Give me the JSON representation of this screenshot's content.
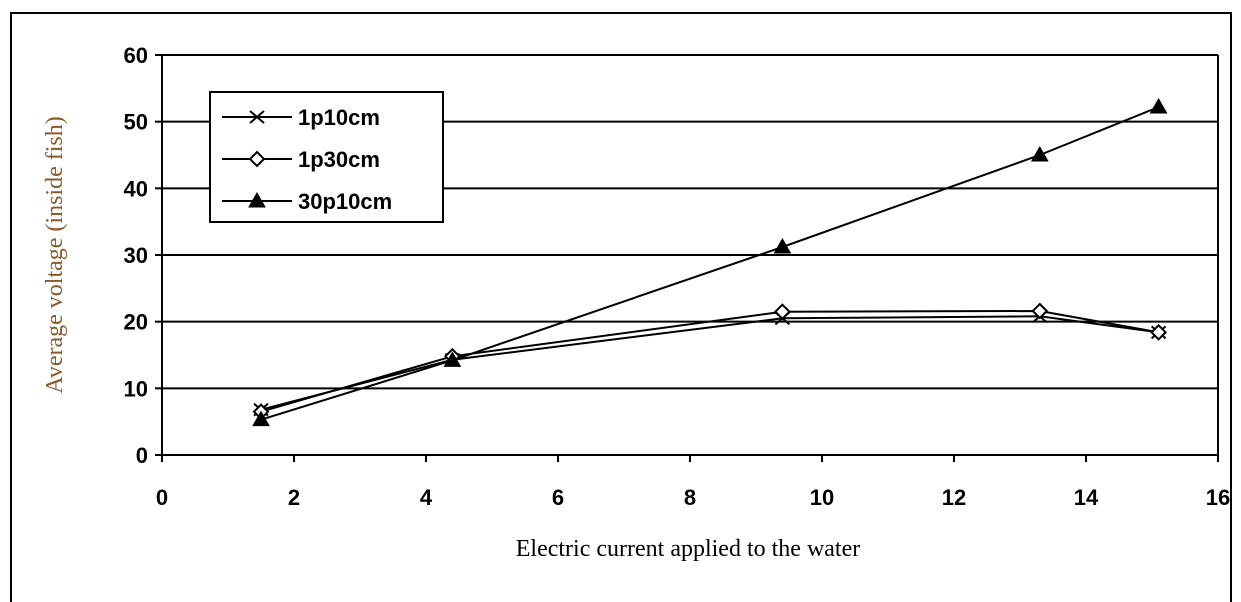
{
  "chart_data": {
    "type": "line",
    "xlabel": "Electric current applied to the water",
    "ylabel": "Average voltage (inside fish)",
    "xlim": [
      0,
      16
    ],
    "ylim": [
      0,
      60
    ],
    "xticks": [
      "0",
      "2",
      "4",
      "6",
      "8",
      "10",
      "12",
      "14",
      "16"
    ],
    "yticks": [
      "0",
      "10",
      "20",
      "30",
      "40",
      "50",
      "60"
    ],
    "grid": "horizontal",
    "legend_position": "top-left",
    "series": [
      {
        "name": "1p10cm",
        "marker": "x",
        "color": "#000000",
        "x": [
          1.5,
          4.4,
          9.4,
          13.3,
          15.1
        ],
        "y": [
          6.8,
          14.3,
          20.5,
          20.8,
          18.4
        ]
      },
      {
        "name": "1p30cm",
        "marker": "diamond",
        "color": "#000000",
        "x": [
          1.5,
          4.4,
          9.4,
          13.3,
          15.1
        ],
        "y": [
          6.5,
          14.8,
          21.5,
          21.6,
          18.4
        ]
      },
      {
        "name": "30p10cm",
        "marker": "triangle",
        "color": "#000000",
        "x": [
          1.5,
          4.4,
          9.4,
          13.3,
          15.1
        ],
        "y": [
          5.3,
          14.2,
          31.2,
          45.0,
          52.2
        ]
      }
    ]
  }
}
